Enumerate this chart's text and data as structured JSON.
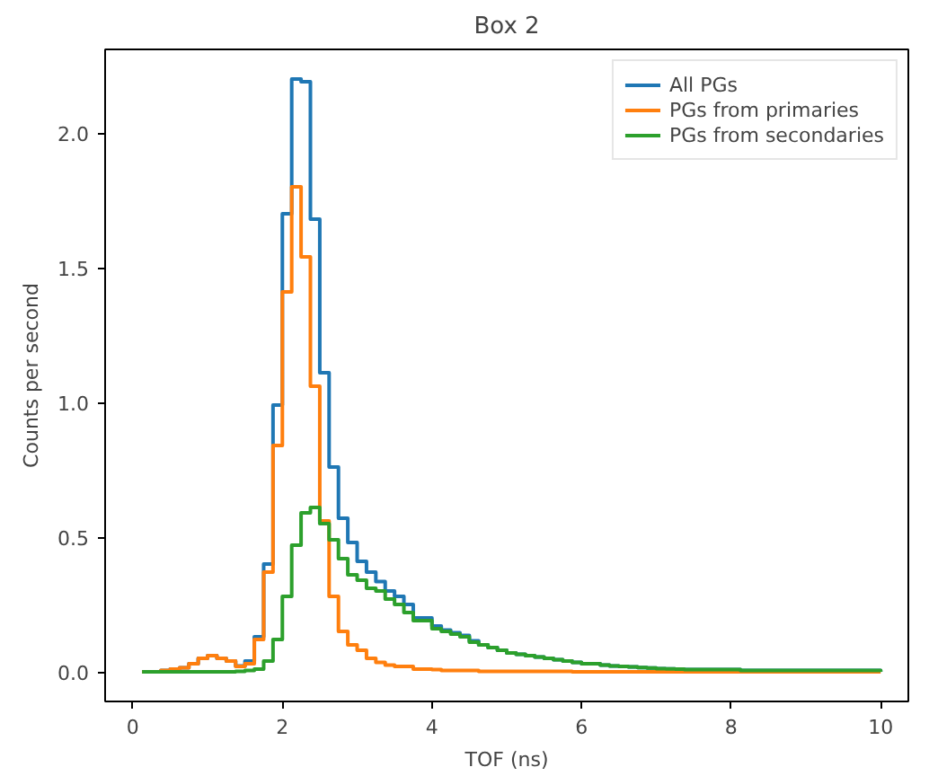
{
  "chart_data": {
    "type": "histogram",
    "title": "Box 2",
    "xlabel": "TOF (ns)",
    "ylabel": "Counts per second",
    "bins": [
      0.125,
      0.25,
      0.375,
      0.5,
      0.625,
      0.75,
      0.875,
      1.0,
      1.125,
      1.25,
      1.375,
      1.5,
      1.625,
      1.75,
      1.875,
      2.0,
      2.125,
      2.25,
      2.375,
      2.5,
      2.625,
      2.75,
      2.875,
      3.0,
      3.125,
      3.25,
      3.375,
      3.5,
      3.625,
      3.75,
      3.875,
      4.0,
      4.125,
      4.25,
      4.375,
      4.5,
      4.625,
      4.75,
      4.875,
      5.0,
      5.125,
      5.25,
      5.375,
      5.5,
      5.625,
      5.75,
      5.875,
      6.0,
      6.125,
      6.25,
      6.375,
      6.5,
      6.625,
      6.75,
      6.875,
      7.0,
      7.125,
      7.25,
      7.375,
      7.5,
      7.625,
      7.75,
      7.875,
      8.0,
      8.125,
      8.25,
      8.375,
      8.5,
      8.625,
      8.75,
      8.875,
      9.0,
      9.125,
      9.25,
      9.375,
      9.5,
      9.625,
      9.75,
      9.875,
      10.0
    ],
    "series": [
      {
        "name": "All PGs",
        "color": "#1f77b4",
        "values": [
          0,
          0,
          0.005,
          0.01,
          0.015,
          0.03,
          0.05,
          0.06,
          0.05,
          0.04,
          0.022,
          0.04,
          0.13,
          0.4,
          0.99,
          1.7,
          2.2,
          2.19,
          1.68,
          1.11,
          0.76,
          0.57,
          0.48,
          0.41,
          0.37,
          0.335,
          0.3,
          0.28,
          0.25,
          0.2,
          0.2,
          0.17,
          0.155,
          0.145,
          0.135,
          0.115,
          0.1,
          0.09,
          0.08,
          0.07,
          0.065,
          0.06,
          0.055,
          0.05,
          0.045,
          0.04,
          0.035,
          0.03,
          0.03,
          0.025,
          0.022,
          0.02,
          0.018,
          0.016,
          0.014,
          0.012,
          0.011,
          0.01,
          0.008,
          0.008,
          0.008,
          0.008,
          0.008,
          0.008,
          0.005,
          0.005,
          0.005,
          0.005,
          0.005,
          0.005,
          0.005,
          0.005,
          0.005,
          0.005,
          0.005,
          0.005,
          0.005,
          0.005,
          0.005
        ]
      },
      {
        "name": "PGs from primaries",
        "color": "#ff7f0e",
        "values": [
          0,
          0,
          0.005,
          0.01,
          0.015,
          0.03,
          0.05,
          0.06,
          0.05,
          0.04,
          0.02,
          0.03,
          0.12,
          0.37,
          0.84,
          1.41,
          1.8,
          1.54,
          1.06,
          0.56,
          0.28,
          0.15,
          0.1,
          0.08,
          0.05,
          0.035,
          0.025,
          0.02,
          0.02,
          0.01,
          0.01,
          0.008,
          0.005,
          0.005,
          0.005,
          0.005,
          0.002,
          0.002,
          0.002,
          0.002,
          0.002,
          0.002,
          0.002,
          0.002,
          0.002,
          0.002,
          0,
          0,
          0,
          0,
          0,
          0,
          0,
          0,
          0,
          0,
          0,
          0,
          0,
          0,
          0,
          0,
          0,
          0,
          0,
          0,
          0,
          0,
          0,
          0,
          0,
          0,
          0,
          0,
          0,
          0,
          0,
          0,
          0
        ]
      },
      {
        "name": "PGs from secondaries",
        "color": "#2ca02c",
        "values": [
          0,
          0,
          0,
          0,
          0,
          0,
          0,
          0,
          0,
          0,
          0.002,
          0.005,
          0.01,
          0.04,
          0.12,
          0.28,
          0.47,
          0.59,
          0.61,
          0.55,
          0.49,
          0.42,
          0.36,
          0.34,
          0.31,
          0.3,
          0.27,
          0.25,
          0.22,
          0.19,
          0.19,
          0.16,
          0.15,
          0.14,
          0.13,
          0.11,
          0.1,
          0.09,
          0.08,
          0.07,
          0.065,
          0.06,
          0.055,
          0.05,
          0.045,
          0.04,
          0.035,
          0.03,
          0.03,
          0.025,
          0.022,
          0.02,
          0.018,
          0.016,
          0.014,
          0.012,
          0.011,
          0.01,
          0.008,
          0.008,
          0.008,
          0.008,
          0.008,
          0.008,
          0.005,
          0.005,
          0.005,
          0.005,
          0.005,
          0.005,
          0.005,
          0.005,
          0.005,
          0.005,
          0.005,
          0.005,
          0.005,
          0.005,
          0.005
        ]
      }
    ],
    "xlim": [
      -0.37,
      10.37
    ],
    "ylim": [
      -0.11,
      2.31
    ],
    "xticks": [
      0,
      2,
      4,
      6,
      8,
      10
    ],
    "yticks": [
      {
        "value": 0,
        "label": "0.0"
      },
      {
        "value": 0.5,
        "label": "0.5"
      },
      {
        "value": 1,
        "label": "1.0"
      },
      {
        "value": 1.5,
        "label": "1.5"
      },
      {
        "value": 2,
        "label": "2.0"
      }
    ],
    "grid": false,
    "legend": "top right"
  }
}
